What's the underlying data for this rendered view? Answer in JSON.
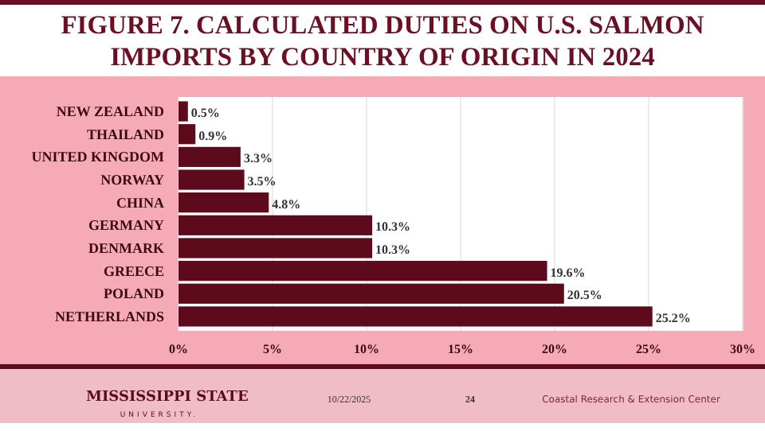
{
  "chart_data": {
    "type": "bar",
    "orientation": "horizontal",
    "title": "FIGURE 7. CALCULATED DUTIES ON U.S. SALMON IMPORTS BY COUNTRY OF ORIGIN IN 2024",
    "categories": [
      "NEW ZEALAND",
      "THAILAND",
      "UNITED KINGDOM",
      "NORWAY",
      "CHINA",
      "GERMANY",
      "DENMARK",
      "GREECE",
      "POLAND",
      "NETHERLANDS"
    ],
    "values": [
      0.5,
      0.9,
      3.3,
      3.5,
      4.8,
      10.3,
      10.3,
      19.6,
      20.5,
      25.2
    ],
    "value_labels": [
      "0.5%",
      "0.9%",
      "3.3%",
      "3.5%",
      "4.8%",
      "10.3%",
      "10.3%",
      "19.6%",
      "20.5%",
      "25.2%"
    ],
    "color": "#5c0a1c",
    "xlim": [
      0,
      30
    ],
    "xticks": [
      {
        "value": 0,
        "label": "0%"
      },
      {
        "value": 5,
        "label": "5%"
      },
      {
        "value": 10,
        "label": "10%"
      },
      {
        "value": 15,
        "label": "15%"
      },
      {
        "value": 20,
        "label": "20%"
      },
      {
        "value": 25,
        "label": "25%"
      },
      {
        "value": 30,
        "label": "30%"
      }
    ],
    "grid": "x",
    "annotations": [
      "MISSISSIPPI STATE",
      "UNIVERSITY.",
      "10/22/2025",
      "24",
      "Coastal Research & Extension Center"
    ]
  }
}
